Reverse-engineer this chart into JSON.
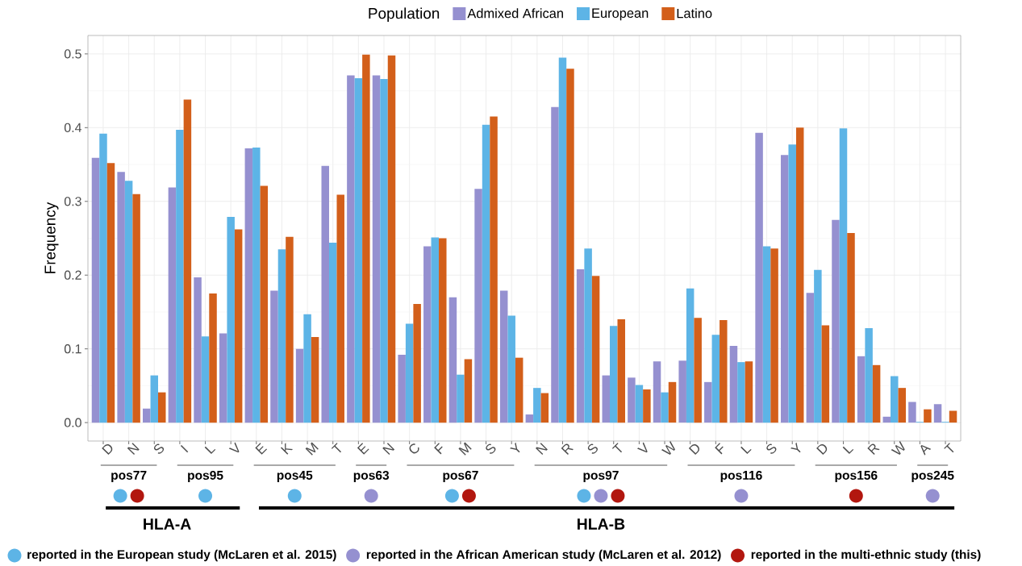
{
  "chart_data": {
    "type": "bar",
    "ylabel": "Frequency",
    "legend_title": "Population",
    "categories": [
      "D",
      "N",
      "S",
      "I",
      "L",
      "V",
      "E",
      "K",
      "M",
      "T",
      "E",
      "N",
      "C",
      "F",
      "M",
      "S",
      "Y",
      "N",
      "R",
      "S",
      "T",
      "V",
      "W",
      "D",
      "F",
      "L",
      "S",
      "Y",
      "D",
      "L",
      "R",
      "W",
      "A",
      "T"
    ],
    "series": [
      {
        "name": "Admixed African",
        "color": "#9590d0",
        "values": [
          0.359,
          0.34,
          0.019,
          0.319,
          0.197,
          0.121,
          0.372,
          0.179,
          0.1,
          0.348,
          0.471,
          0.471,
          0.092,
          0.239,
          0.17,
          0.317,
          0.179,
          0.011,
          0.428,
          0.208,
          0.064,
          0.061,
          0.083,
          0.084,
          0.055,
          0.104,
          0.393,
          0.363,
          0.176,
          0.275,
          0.09,
          0.008,
          0.028,
          0.025
        ]
      },
      {
        "name": "European",
        "color": "#5db4e6",
        "values": [
          0.392,
          0.328,
          0.064,
          0.397,
          0.117,
          0.279,
          0.373,
          0.235,
          0.147,
          0.244,
          0.467,
          0.466,
          0.134,
          0.251,
          0.065,
          0.404,
          0.145,
          0.047,
          0.495,
          0.236,
          0.131,
          0.051,
          0.041,
          0.182,
          0.119,
          0.082,
          0.239,
          0.377,
          0.207,
          0.399,
          0.128,
          0.063,
          0.001,
          0.001
        ]
      },
      {
        "name": "Latino",
        "color": "#d35f1a",
        "values": [
          0.352,
          0.31,
          0.041,
          0.438,
          0.175,
          0.262,
          0.321,
          0.252,
          0.116,
          0.309,
          0.499,
          0.498,
          0.161,
          0.25,
          0.086,
          0.415,
          0.088,
          0.04,
          0.48,
          0.199,
          0.14,
          0.045,
          0.055,
          0.142,
          0.139,
          0.083,
          0.236,
          0.4,
          0.132,
          0.257,
          0.078,
          0.047,
          0.018,
          0.016
        ]
      }
    ],
    "ylim": [
      -0.025,
      0.525
    ],
    "yticks": [
      {
        "value": 0,
        "label": "0.0"
      },
      0.1,
      0.2,
      0.3,
      0.4,
      0.5
    ],
    "grid": true,
    "legend": "top",
    "annotations": [
      "pos77",
      "pos95",
      "pos45",
      "pos63",
      "pos67",
      "pos97",
      "pos116",
      "pos156",
      "pos245",
      "HLA-A",
      "HLA-B",
      "reported in the European study (McLaren et al. 2015)",
      "reported in the African American study (McLaren et al. 2012)",
      "reported in the multi-ethnic study (this)"
    ]
  }
}
